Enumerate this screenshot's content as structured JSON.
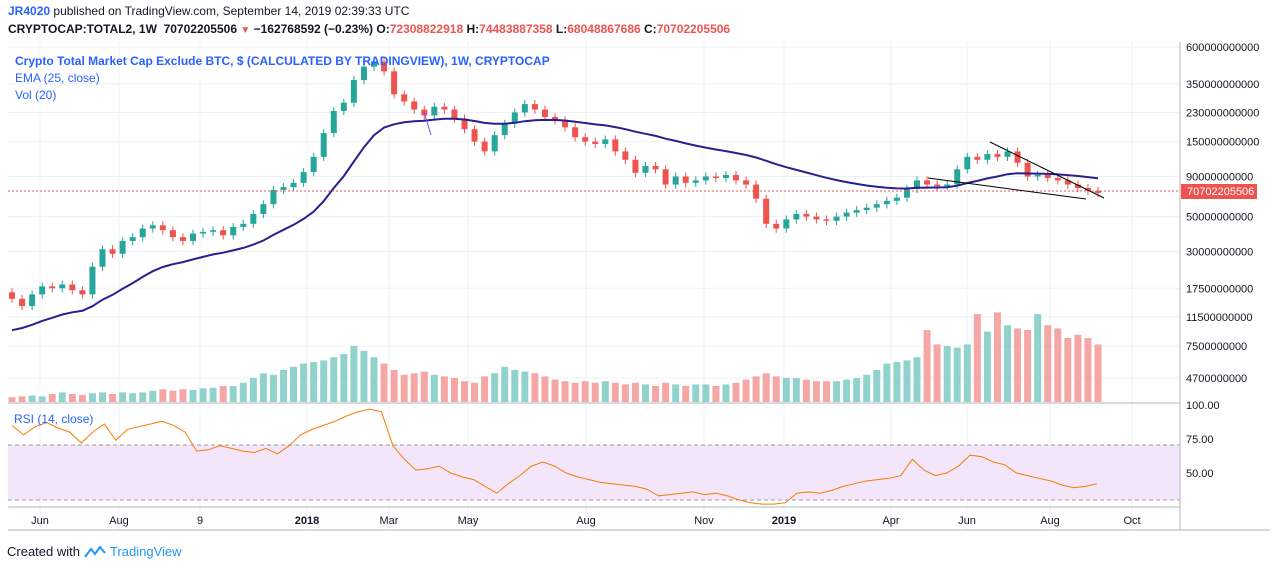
{
  "header": {
    "author": "JR4020",
    "published": "published on TradingView.com, September 14, 2019 02:39:33 UTC",
    "symbol": "CRYPTOCAP:TOTAL2, 1W",
    "last": "70702205506",
    "change": "−162768592 (−0.23%)",
    "o_label": "O:",
    "o_value": "72308822918",
    "h_label": "H:",
    "h_value": "74483887358",
    "l_label": "L:",
    "l_value": "68048867686",
    "c_label": "C:",
    "c_value": "70702205506"
  },
  "legend": {
    "main": "Crypto Total Market Cap Exclude BTC, $ (CALCULATED BY TRADINGVIEW), 1W, CRYPTOCAP",
    "ema": "EMA (25, close)",
    "vol": "Vol (20)",
    "rsi": "RSI (14, close)"
  },
  "footer": {
    "created_with": "Created with",
    "brand": "TradingView"
  },
  "colors": {
    "up": "#26a69a",
    "down": "#ef5350",
    "ema": "#2a1f8f",
    "rsi": "#f57c00",
    "rsi_band": "#f0e4f8",
    "price_line": "#ef5350",
    "volume_up": "#91d3cc",
    "volume_down": "#f5a7a5"
  },
  "chart_data": {
    "type": "candlestick",
    "y_scale": "log",
    "price_axis_ticks": [
      "600000000000",
      "350000000000",
      "230000000000",
      "150000000000",
      "90000000000",
      "50000000000",
      "30000000000",
      "17500000000",
      "11500000000",
      "7500000000",
      "4700000000"
    ],
    "last_price_label": "70702205506",
    "x_ticks": [
      "Jun",
      "Aug",
      "9",
      "2018",
      "Mar",
      "May",
      "Aug",
      "Nov",
      "2019",
      "Apr",
      "Jun",
      "Aug",
      "Oct"
    ],
    "rsi_ticks": [
      "100.00",
      "75.00",
      "50.00"
    ],
    "rsi_band": [
      30,
      70
    ],
    "candles_close": [
      15,
      13.5,
      16,
      18,
      17.5,
      18.5,
      17,
      16,
      24,
      31,
      29,
      35,
      37,
      42,
      44,
      41,
      37,
      35,
      39,
      40,
      41,
      38,
      43,
      45,
      52,
      60,
      74,
      77,
      82,
      96,
      120,
      170,
      235,
      265,
      370,
      450,
      485,
      420,
      300,
      270,
      240,
      220,
      250,
      240,
      210,
      180,
      150,
      130,
      165,
      195,
      230,
      260,
      240,
      215,
      205,
      185,
      160,
      150,
      145,
      155,
      130,
      115,
      95,
      105,
      100,
      80,
      90,
      82,
      85,
      90,
      88,
      92,
      85,
      80,
      65,
      45,
      42,
      48,
      52,
      50,
      48,
      47,
      50,
      53,
      55,
      57,
      60,
      63,
      66,
      75,
      85,
      80,
      78,
      80,
      100,
      120,
      115,
      125,
      120,
      130,
      110,
      90,
      92,
      88,
      85,
      80,
      76,
      73,
      70.7
    ],
    "volume": [
      0.3,
      0.35,
      0.4,
      0.35,
      0.5,
      0.6,
      0.5,
      0.45,
      0.55,
      0.6,
      0.5,
      0.6,
      0.55,
      0.6,
      0.7,
      0.8,
      0.7,
      0.8,
      0.75,
      0.85,
      0.9,
      1.0,
      1.0,
      1.2,
      1.5,
      1.8,
      1.7,
      2.0,
      2.2,
      2.4,
      2.5,
      2.6,
      2.8,
      3.0,
      3.5,
      3.2,
      2.8,
      2.4,
      2.0,
      1.7,
      1.8,
      1.9,
      1.7,
      1.6,
      1.5,
      1.3,
      1.2,
      1.6,
      1.8,
      2.2,
      2.0,
      1.9,
      1.8,
      1.6,
      1.4,
      1.3,
      1.2,
      1.3,
      1.2,
      1.3,
      1.2,
      1.1,
      1.2,
      1.1,
      1.0,
      1.2,
      1.1,
      1.0,
      1.1,
      1.1,
      1.0,
      1.1,
      1.2,
      1.4,
      1.6,
      1.8,
      1.6,
      1.5,
      1.5,
      1.4,
      1.3,
      1.3,
      1.3,
      1.4,
      1.5,
      1.7,
      2.0,
      2.4,
      2.5,
      2.6,
      2.8,
      4.5,
      3.6,
      3.5,
      3.4,
      3.6,
      5.5,
      4.4,
      5.6,
      4.8,
      4.6,
      4.5,
      5.5,
      4.8,
      4.6,
      4.0,
      4.2,
      4.0,
      3.6
    ],
    "rsi": [
      85,
      78,
      84,
      87,
      83,
      80,
      72,
      80,
      86,
      74,
      82,
      84,
      86,
      88,
      85,
      80,
      66,
      67,
      70,
      68,
      66,
      65,
      68,
      64,
      70,
      78,
      82,
      85,
      88,
      92,
      95,
      97,
      95,
      70,
      60,
      52,
      53,
      55,
      50,
      47,
      45,
      40,
      35,
      42,
      48,
      55,
      58,
      55,
      50,
      47,
      45,
      43,
      42,
      41,
      40,
      38,
      33,
      34,
      35,
      36,
      34,
      35,
      33,
      30,
      28,
      27,
      27,
      28,
      35,
      36,
      35,
      37,
      40,
      42,
      44,
      45,
      46,
      48,
      60,
      52,
      48,
      50,
      55,
      63,
      62,
      58,
      56,
      50,
      48,
      46,
      44,
      41,
      39,
      40,
      42
    ],
    "annotations": [
      "falling wedge trendlines"
    ]
  }
}
